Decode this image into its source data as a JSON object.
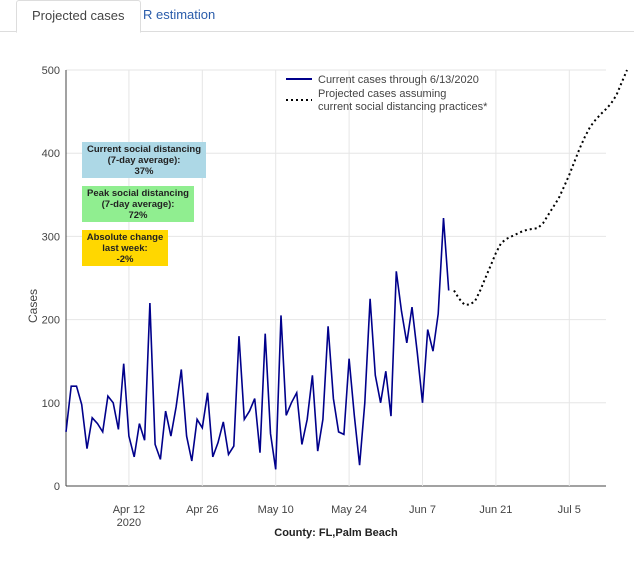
{
  "tabs": [
    {
      "label": "Projected cases",
      "active": true
    },
    {
      "label": "R estimation",
      "active": false
    }
  ],
  "colors": {
    "current_line": "#00008b",
    "projected_line": "#000000",
    "current_box": "#add8e6",
    "peak_box": "#90ee90",
    "abs_box": "#ffd700",
    "tab_link": "#2a5caa"
  },
  "annotations": {
    "current": {
      "line1": "Current social distancing",
      "line2": "(7-day average):",
      "line3": "37%"
    },
    "peak": {
      "line1": "Peak social distancing",
      "line2": "(7-day average):",
      "line3": "72%"
    },
    "absolute": {
      "line1": "Absolute change",
      "line2": "last week:",
      "line3": "-2%"
    }
  },
  "chart_data": {
    "type": "line",
    "xlabel": "County: FL,Palm Beach",
    "ylabel": "Cases",
    "ylim": [
      0,
      500
    ],
    "yticks": [
      0,
      100,
      200,
      300,
      400,
      500
    ],
    "xticks": [
      {
        "date": "2020-04-12",
        "label": "Apr 12",
        "sublabel": "2020"
      },
      {
        "date": "2020-04-26",
        "label": "Apr 26",
        "sublabel": ""
      },
      {
        "date": "2020-05-10",
        "label": "May 10",
        "sublabel": ""
      },
      {
        "date": "2020-05-24",
        "label": "May 24",
        "sublabel": ""
      },
      {
        "date": "2020-06-07",
        "label": "Jun 7",
        "sublabel": ""
      },
      {
        "date": "2020-06-21",
        "label": "Jun 21",
        "sublabel": ""
      },
      {
        "date": "2020-07-05",
        "label": "Jul 5",
        "sublabel": ""
      }
    ],
    "xlim": [
      "2020-03-31",
      "2020-07-12"
    ],
    "grid": true,
    "legend_position": "top-right",
    "series": [
      {
        "name": "Current cases through 6/13/2020",
        "style": "solid",
        "start_date": "2020-03-31",
        "values": [
          65,
          120,
          120,
          98,
          45,
          82,
          75,
          65,
          108,
          100,
          68,
          147,
          60,
          35,
          75,
          55,
          220,
          50,
          32,
          90,
          60,
          95,
          140,
          60,
          30,
          80,
          70,
          112,
          35,
          52,
          77,
          38,
          48,
          180,
          80,
          90,
          105,
          40,
          183,
          63,
          20,
          205,
          85,
          100,
          112,
          50,
          80,
          133,
          42,
          80,
          192,
          105,
          65,
          62,
          153,
          85,
          25,
          100,
          225,
          133,
          100,
          138,
          84,
          258,
          210,
          172,
          215,
          160,
          100,
          188,
          162,
          207,
          322,
          235
        ]
      },
      {
        "name": "Projected cases assuming current social distancing practices*",
        "style": "dotted",
        "start_date": "2020-06-13",
        "values": [
          235,
          225,
          218,
          218,
          222,
          235,
          250,
          265,
          280,
          292,
          297,
          300,
          303,
          306,
          308,
          309,
          310,
          316,
          326,
          336,
          346,
          360,
          374,
          390,
          406,
          420,
          432,
          440,
          447,
          453,
          460,
          470,
          485,
          500
        ]
      }
    ]
  }
}
